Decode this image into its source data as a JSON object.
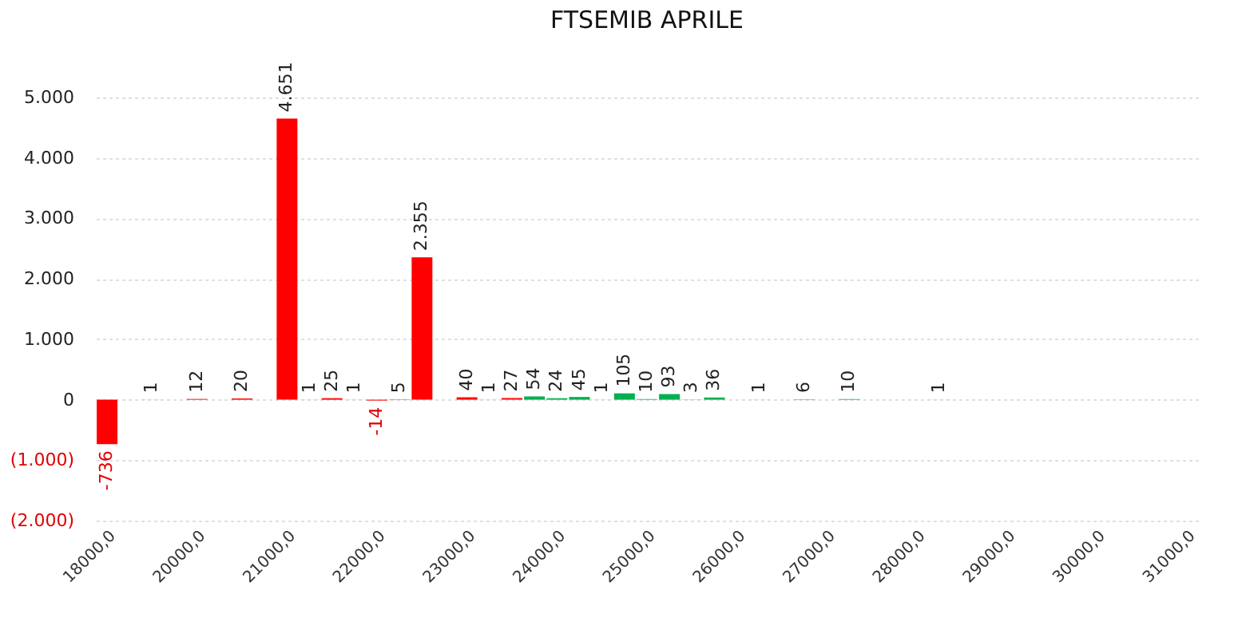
{
  "chart_data": {
    "type": "bar",
    "title": "FTSEMIB APRILE",
    "categories": [
      "18000,0",
      null,
      null,
      null,
      "20000,0",
      null,
      null,
      null,
      "21000,0",
      null,
      null,
      null,
      "22000,0",
      null,
      null,
      null,
      "23000,0",
      null,
      null,
      null,
      "24000,0",
      null,
      null,
      null,
      "25000,0",
      null,
      null,
      null,
      "26000,0",
      null,
      null,
      null,
      "27000,0",
      null,
      null,
      null,
      "28000,0",
      null,
      null,
      null,
      "29000,0",
      null,
      null,
      null,
      "30000,0",
      null,
      null,
      null,
      "31000,0"
    ],
    "values": [
      -736,
      null,
      1,
      null,
      12,
      null,
      20,
      null,
      4651,
      1,
      25,
      1,
      -14,
      5,
      2355,
      null,
      40,
      1,
      27,
      54,
      24,
      45,
      1,
      105,
      10,
      93,
      3,
      36,
      null,
      1,
      null,
      6,
      null,
      10,
      null,
      null,
      null,
      1,
      null,
      null,
      null,
      null,
      null,
      null,
      null,
      null,
      null,
      null,
      null
    ],
    "value_labels": [
      "-736",
      null,
      "1",
      null,
      "12",
      null,
      "20",
      null,
      "4.651",
      "1",
      "25",
      "1",
      "-14",
      "5",
      "2.355",
      null,
      "40",
      "1",
      "27",
      "54",
      "24",
      "45",
      "1",
      "105",
      "10",
      "93",
      "3",
      "36",
      null,
      "1",
      null,
      "6",
      null,
      "10",
      null,
      null,
      null,
      "1",
      null,
      null,
      null,
      null,
      null,
      null,
      null,
      null,
      null,
      null,
      null
    ],
    "colors": [
      "#ff0000",
      null,
      "#ff0000",
      null,
      "#ff0000",
      null,
      "#ff0000",
      null,
      "#ff0000",
      "#ff0000",
      "#ff0000",
      "#ff0000",
      "#ff0000",
      "#ff0000",
      "#ff0000",
      null,
      "#ff0000",
      "#ff0000",
      "#ff0000",
      "#00b050",
      "#00b050",
      "#00b050",
      "#00b050",
      "#00b050",
      "#00b050",
      "#00b050",
      "#00b050",
      "#00b050",
      null,
      "#00b050",
      null,
      "#00b050",
      null,
      "#00b050",
      null,
      null,
      null,
      "#00b050",
      null,
      null,
      null,
      null,
      null,
      null,
      null,
      null,
      null,
      null,
      null
    ],
    "ylim": [
      -2000,
      5000
    ],
    "yticks": [
      {
        "value": -2000,
        "label": "(2.000)"
      },
      {
        "value": -1000,
        "label": "(1.000)"
      },
      0,
      {
        "value": 1000,
        "label": "1.000"
      },
      {
        "value": 2000,
        "label": "2.000"
      },
      {
        "value": 3000,
        "label": "3.000"
      },
      {
        "value": 4000,
        "label": "4.000"
      },
      {
        "value": 5000,
        "label": "5.000"
      }
    ],
    "grid": "y"
  }
}
